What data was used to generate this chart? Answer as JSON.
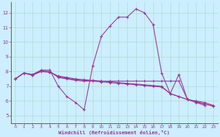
{
  "xlabel": "Windchill (Refroidissement éolien,°C)",
  "bg_color": "#cceeff",
  "grid_color": "#aaddcc",
  "line_color": "#993399",
  "xlim": [
    -0.5,
    23.5
  ],
  "ylim": [
    4.5,
    12.7
  ],
  "xticks": [
    0,
    1,
    2,
    3,
    4,
    5,
    6,
    7,
    8,
    9,
    10,
    11,
    12,
    13,
    14,
    15,
    16,
    17,
    18,
    19,
    20,
    21,
    22,
    23
  ],
  "yticks": [
    5,
    6,
    7,
    8,
    9,
    10,
    11,
    12
  ],
  "series": [
    {
      "x": [
        0,
        1,
        2,
        3,
        4,
        5,
        6,
        7,
        8,
        9,
        10,
        11,
        12,
        13,
        14,
        15,
        16,
        17,
        18,
        19,
        20,
        21,
        22
      ],
      "y": [
        7.5,
        7.9,
        7.8,
        8.1,
        8.1,
        7.0,
        6.3,
        5.9,
        5.4,
        8.4,
        10.4,
        11.1,
        11.7,
        11.7,
        12.25,
        12.0,
        11.2,
        7.9,
        6.5,
        7.8,
        6.1,
        5.9,
        5.7
      ]
    },
    {
      "x": [
        0,
        1,
        2,
        3,
        4,
        5,
        6,
        7,
        8,
        9,
        10,
        11,
        12,
        13,
        14,
        15,
        16,
        17,
        18,
        19,
        20,
        21,
        22,
        23
      ],
      "y": [
        7.5,
        7.9,
        7.75,
        8.05,
        8.0,
        7.6,
        7.5,
        7.4,
        7.35,
        7.35,
        7.35,
        7.35,
        7.35,
        7.35,
        7.35,
        7.35,
        7.35,
        7.35,
        7.35,
        7.35,
        6.1,
        6.0,
        5.9,
        5.7
      ]
    },
    {
      "x": [
        0,
        1,
        2,
        3,
        4,
        5,
        6,
        7,
        8,
        9,
        10,
        11,
        12,
        13,
        14,
        15,
        16,
        17,
        18,
        19,
        20,
        21,
        22,
        23
      ],
      "y": [
        7.5,
        7.9,
        7.8,
        8.0,
        8.0,
        7.65,
        7.55,
        7.45,
        7.4,
        7.35,
        7.3,
        7.25,
        7.2,
        7.15,
        7.1,
        7.05,
        7.0,
        6.95,
        6.5,
        6.3,
        6.1,
        5.95,
        5.8,
        5.65
      ]
    },
    {
      "x": [
        0,
        1,
        2,
        3,
        4,
        5,
        6,
        7,
        8,
        9,
        10,
        11,
        12,
        13,
        14,
        15,
        16,
        17,
        18,
        19,
        20,
        21,
        22,
        23
      ],
      "y": [
        7.5,
        7.9,
        7.75,
        8.0,
        7.95,
        7.7,
        7.6,
        7.5,
        7.45,
        7.4,
        7.35,
        7.3,
        7.25,
        7.2,
        7.15,
        7.1,
        7.05,
        7.0,
        6.5,
        6.3,
        6.1,
        5.95,
        5.8,
        5.65
      ]
    }
  ]
}
